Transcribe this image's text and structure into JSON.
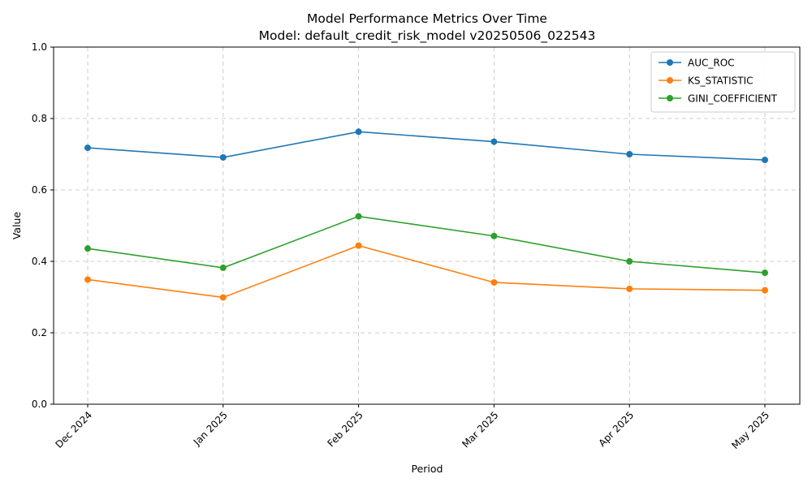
{
  "chart_data": {
    "type": "line",
    "title": "Model Performance Metrics Over Time",
    "subtitle": "Model: default_credit_risk_model v20250506_022543",
    "xlabel": "Period",
    "ylabel": "Value",
    "ylim": [
      0,
      1.0
    ],
    "yticks": [
      "0.0",
      "0.2",
      "0.4",
      "0.6",
      "0.8",
      "1.0"
    ],
    "categories": [
      "Dec 2024",
      "Jan 2025",
      "Feb 2025",
      "Mar 2025",
      "Apr 2025",
      "May 2025"
    ],
    "grid": true,
    "legend_position": "top-right",
    "series": [
      {
        "name": "AUC_ROC",
        "color": "#1f77b4",
        "values": [
          0.718,
          0.691,
          0.763,
          0.735,
          0.7,
          0.684
        ]
      },
      {
        "name": "KS_STATISTIC",
        "color": "#ff7f0e",
        "values": [
          0.349,
          0.299,
          0.444,
          0.341,
          0.323,
          0.319
        ]
      },
      {
        "name": "GINI_COEFFICIENT",
        "color": "#2ca02c",
        "values": [
          0.436,
          0.382,
          0.526,
          0.471,
          0.4,
          0.368
        ]
      }
    ]
  }
}
